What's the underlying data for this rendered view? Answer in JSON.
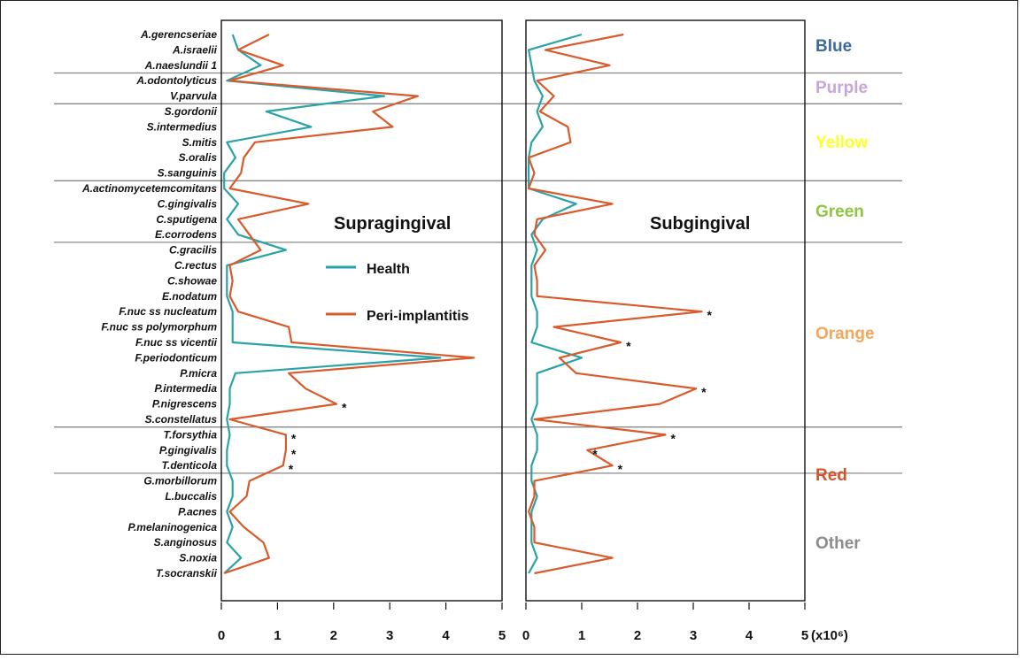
{
  "chart_data": {
    "type": "line",
    "orientation": "horizontal-profile",
    "x_range": [
      0,
      5
    ],
    "x_ticks": [
      "0",
      "1",
      "2",
      "3",
      "4",
      "5"
    ],
    "x_unit_label": "(x10⁶)",
    "species": [
      "A.gerencseriae",
      "A.israelii",
      "A.naeslundii 1",
      "A.odontolyticus",
      "V.parvula",
      "S.gordonii",
      "S.intermedius",
      "S.mitis",
      "S.oralis",
      "S.sanguinis",
      "A.actinomycetemcomitans",
      "C.gingivalis",
      "C.sputigena",
      "E.corrodens",
      "C.gracilis",
      "C.rectus",
      "C.showae",
      "E.nodatum",
      "F.nuc ss nucleatum",
      "F.nuc ss polymorphum",
      "F.nuc ss vicentii",
      "F.periodonticum",
      "P.micra",
      "P.intermedia",
      "P.nigrescens",
      "S.constellatus",
      "T.forsythia",
      "P.gingivalis",
      "T.denticola",
      "G.morbillorum",
      "L.buccalis",
      "P.acnes",
      "P.melaninogenica",
      "S.anginosus",
      "S.noxia",
      "T.socranskii"
    ],
    "clusters": [
      {
        "name": "Blue",
        "color": "#3f6b98",
        "first": 0,
        "last": 2
      },
      {
        "name": "Purple",
        "color": "#c7a6d9",
        "first": 3,
        "last": 4
      },
      {
        "name": "Yellow",
        "color": "#ffff2a",
        "first": 5,
        "last": 9
      },
      {
        "name": "Green",
        "color": "#8ec63f",
        "first": 10,
        "last": 13
      },
      {
        "name": "Orange",
        "color": "#f5a65b",
        "first": 14,
        "last": 28
      },
      {
        "name": "Red",
        "color": "#d2552a",
        "first": 26,
        "last": 28
      },
      {
        "name": "Other",
        "color": "#8c8c8c",
        "first": 29,
        "last": 35
      }
    ],
    "legend": [
      {
        "label": "Health",
        "color": "#2aa3a8"
      },
      {
        "label": "Peri-implantitis",
        "color": "#d95a2b"
      }
    ],
    "panels": [
      {
        "title": "Supragingival",
        "health": [
          0.2,
          0.3,
          0.7,
          0.1,
          2.9,
          0.8,
          1.6,
          0.1,
          0.25,
          0.05,
          0.05,
          0.3,
          0.1,
          0.3,
          1.15,
          0.1,
          0.1,
          0.1,
          0.2,
          0.2,
          0.2,
          3.9,
          0.25,
          0.15,
          0.15,
          0.1,
          0.15,
          0.1,
          0.1,
          0.2,
          0.2,
          0.1,
          0.2,
          0.1,
          0.35,
          0.05
        ],
        "peri": [
          0.85,
          0.3,
          1.1,
          0.15,
          3.5,
          2.7,
          3.05,
          0.6,
          0.4,
          0.35,
          0.15,
          1.55,
          0.3,
          0.5,
          0.7,
          0.15,
          0.2,
          0.15,
          0.3,
          1.2,
          1.25,
          4.5,
          1.2,
          1.5,
          2.05,
          0.15,
          1.15,
          1.15,
          1.1,
          0.5,
          0.45,
          0.15,
          0.4,
          0.75,
          0.85,
          0.05
        ],
        "significant": [
          {
            "species": "P.nigrescens",
            "mark": "*"
          },
          {
            "species": "T.forsythia",
            "mark": "*"
          },
          {
            "species": "P.gingivalis",
            "mark": "*"
          },
          {
            "species": "T.denticola",
            "mark": "*"
          }
        ]
      },
      {
        "title": "Subgingival",
        "health": [
          1.0,
          0.05,
          0.1,
          0.15,
          0.3,
          0.2,
          0.3,
          0.1,
          0.05,
          0.05,
          0.05,
          0.9,
          0.3,
          0.1,
          0.2,
          0.1,
          0.1,
          0.1,
          0.2,
          0.2,
          0.1,
          1.0,
          0.2,
          0.2,
          0.2,
          0.1,
          0.2,
          0.2,
          0.1,
          0.1,
          0.2,
          0.1,
          0.1,
          0.1,
          0.2,
          0.05
        ],
        "peri": [
          1.75,
          0.35,
          1.5,
          0.2,
          0.5,
          0.25,
          0.75,
          0.8,
          0.05,
          0.15,
          0.05,
          1.55,
          0.2,
          0.15,
          0.35,
          0.15,
          0.2,
          0.2,
          3.15,
          0.5,
          1.7,
          0.6,
          0.9,
          3.05,
          2.4,
          0.15,
          2.5,
          1.1,
          1.55,
          0.15,
          0.15,
          0.05,
          0.15,
          0.15,
          1.55,
          0.15
        ],
        "significant": [
          {
            "species": "F.nuc ss nucleatum",
            "mark": "*"
          },
          {
            "species": "F.nuc ss vicentii",
            "mark": "*"
          },
          {
            "species": "P.intermedia",
            "mark": "*"
          },
          {
            "species": "T.forsythia",
            "mark": "*"
          },
          {
            "species": "P.gingivalis",
            "mark": "*"
          },
          {
            "species": "T.denticola",
            "mark": "*"
          }
        ]
      }
    ]
  }
}
